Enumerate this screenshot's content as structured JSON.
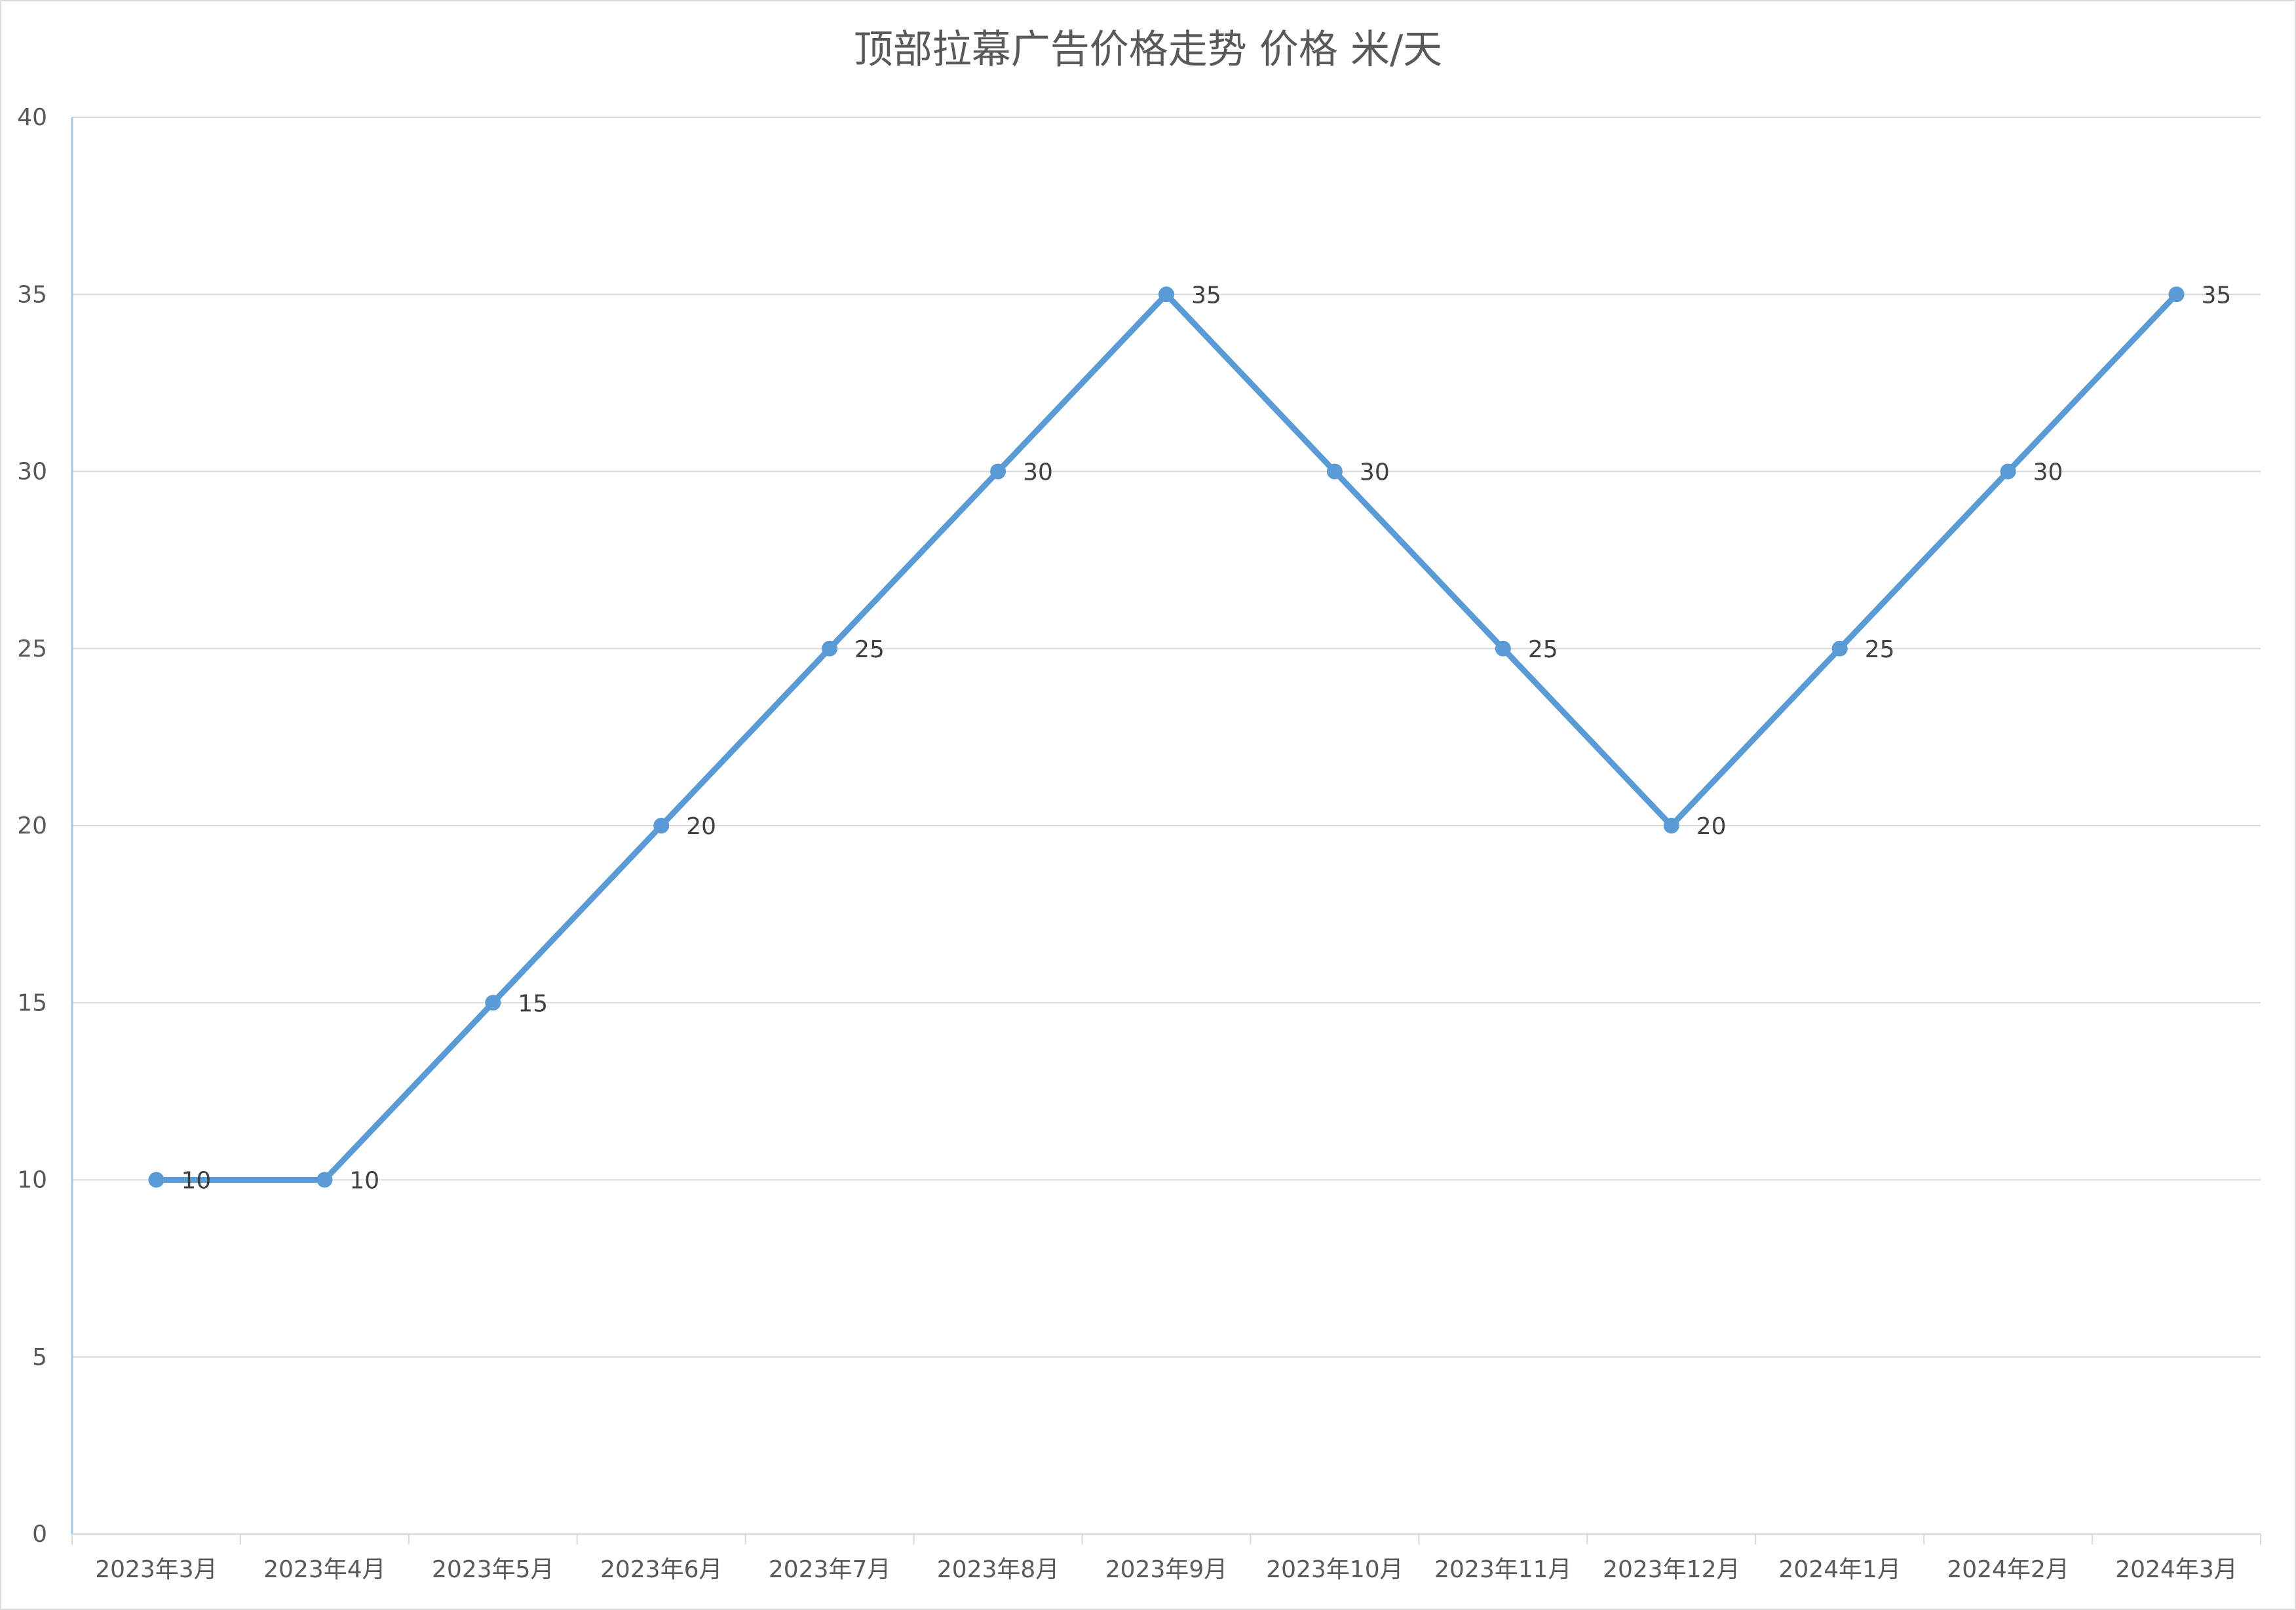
{
  "chart_data": {
    "type": "line",
    "title": "顶部拉幕广告价格走势     价格 米/天",
    "xlabel": "",
    "ylabel": "",
    "categories": [
      "2023年3月",
      "2023年4月",
      "2023年5月",
      "2023年6月",
      "2023年7月",
      "2023年8月",
      "2023年9月",
      "2023年10月",
      "2023年11月",
      "2023年12月",
      "2024年1月",
      "2024年2月",
      "2024年3月"
    ],
    "series": [
      {
        "values": [
          10,
          10,
          15,
          20,
          25,
          30,
          35,
          30,
          25,
          20,
          25,
          30,
          35
        ],
        "color": "#5B9BD5"
      }
    ],
    "ylim": [
      0,
      40
    ],
    "yticks": [
      0,
      5,
      10,
      15,
      20,
      25,
      30,
      35,
      40
    ],
    "grid": true,
    "data_labels": true,
    "legend": "none"
  },
  "colors": {
    "line": "#5B9BD5",
    "grid": "#D9D9D9",
    "axis": "#A6C6E6",
    "tick_text": "#595959",
    "data_label_text": "#404040",
    "border": "#D9D9D9"
  }
}
